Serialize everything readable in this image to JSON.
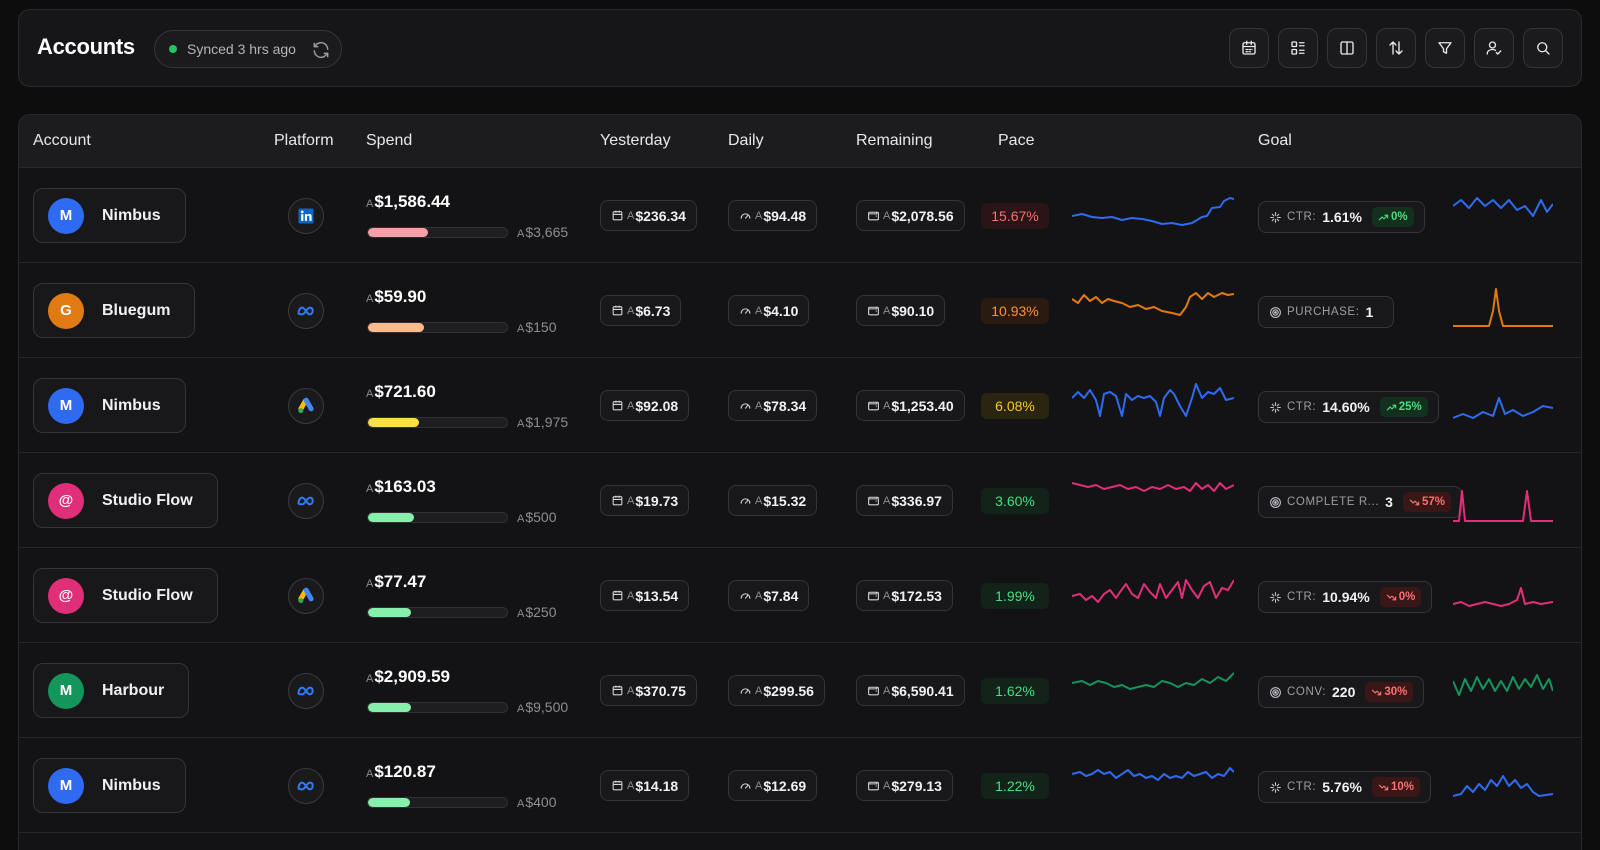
{
  "header": {
    "title": "Accounts",
    "sync_status": "Synced 3 hrs ago",
    "toolbar": [
      "calendar-icon",
      "list-details-icon",
      "columns-icon",
      "sort-icon",
      "filter-icon",
      "user-settings-icon",
      "search-icon"
    ]
  },
  "columns": {
    "account": "Account",
    "platform": "Platform",
    "spend": "Spend",
    "yesterday": "Yesterday",
    "daily": "Daily",
    "remaining": "Remaining",
    "pace": "Pace",
    "goal": "Goal"
  },
  "currency_prefix": "A",
  "rows": [
    {
      "name": "Nimbus",
      "initial": "M",
      "avatar_color": "#2f6bf0",
      "platform": "linkedin-icon",
      "spend": "$1,586.44",
      "spend_fraction": 0.43,
      "budget": "$3,665",
      "bar_color": "#f4a0a6",
      "yesterday": "$236.34",
      "daily": "$94.48",
      "remaining": "$2,078.56",
      "pace": "15.67%",
      "pace_color": "#f87171",
      "pace_bg": "#2b1416",
      "goal_icon": "sparkle-icon",
      "goal_label": "CTR:",
      "goal_value": "1.61%",
      "trend": "0%",
      "trend_dir": "up",
      "spark_color": "#2f6bf0"
    },
    {
      "name": "Bluegum",
      "initial": "G",
      "avatar_color": "#e07b14",
      "platform": "meta-icon",
      "spend": "$59.90",
      "spend_fraction": 0.4,
      "budget": "$150",
      "bar_color": "#fdba8c",
      "yesterday": "$6.73",
      "daily": "$4.10",
      "remaining": "$90.10",
      "pace": "10.93%",
      "pace_color": "#fb923c",
      "pace_bg": "#2b1a10",
      "goal_icon": "target-icon",
      "goal_label": "PURCHASE:",
      "goal_value": "1",
      "trend": "",
      "trend_dir": "",
      "spark_color": "#e07b14"
    },
    {
      "name": "Nimbus",
      "initial": "M",
      "avatar_color": "#2f6bf0",
      "platform": "google-ads-icon",
      "spend": "$721.60",
      "spend_fraction": 0.37,
      "budget": "$1,975",
      "bar_color": "#fde047",
      "yesterday": "$92.08",
      "daily": "$78.34",
      "remaining": "$1,253.40",
      "pace": "6.08%",
      "pace_color": "#facc15",
      "pace_bg": "#2a2510",
      "goal_icon": "sparkle-icon",
      "goal_label": "CTR:",
      "goal_value": "14.60%",
      "trend": "25%",
      "trend_dir": "up",
      "spark_color": "#2f6bf0"
    },
    {
      "name": "Studio Flow",
      "initial": "@",
      "avatar_color": "#e02f78",
      "platform": "meta-icon",
      "spend": "$163.03",
      "spend_fraction": 0.33,
      "budget": "$500",
      "bar_color": "#86efac",
      "yesterday": "$19.73",
      "daily": "$15.32",
      "remaining": "$336.97",
      "pace": "3.60%",
      "pace_color": "#4ade80",
      "pace_bg": "#12231a",
      "goal_icon": "target-icon",
      "goal_label": "COMPLETE R...",
      "goal_value": "3",
      "trend": "57%",
      "trend_dir": "down",
      "spark_color": "#e02f78"
    },
    {
      "name": "Studio Flow",
      "initial": "@",
      "avatar_color": "#e02f78",
      "platform": "google-ads-icon",
      "spend": "$77.47",
      "spend_fraction": 0.31,
      "budget": "$250",
      "bar_color": "#86efac",
      "yesterday": "$13.54",
      "daily": "$7.84",
      "remaining": "$172.53",
      "pace": "1.99%",
      "pace_color": "#4ade80",
      "pace_bg": "#12231a",
      "goal_icon": "sparkle-icon",
      "goal_label": "CTR:",
      "goal_value": "10.94%",
      "trend": "0%",
      "trend_dir": "down",
      "spark_color": "#e02f78"
    },
    {
      "name": "Harbour",
      "initial": "M",
      "avatar_color": "#14955c",
      "platform": "meta-icon",
      "spend": "$2,909.59",
      "spend_fraction": 0.31,
      "budget": "$9,500",
      "bar_color": "#86efac",
      "yesterday": "$370.75",
      "daily": "$299.56",
      "remaining": "$6,590.41",
      "pace": "1.62%",
      "pace_color": "#4ade80",
      "pace_bg": "#12231a",
      "goal_icon": "target-icon",
      "goal_label": "CONV:",
      "goal_value": "220",
      "trend": "30%",
      "trend_dir": "down",
      "spark_color": "#14955c"
    },
    {
      "name": "Nimbus",
      "initial": "M",
      "avatar_color": "#2f6bf0",
      "platform": "meta-icon",
      "spend": "$120.87",
      "spend_fraction": 0.3,
      "budget": "$400",
      "bar_color": "#86efac",
      "yesterday": "$14.18",
      "daily": "$12.69",
      "remaining": "$279.13",
      "pace": "1.22%",
      "pace_color": "#4ade80",
      "pace_bg": "#12231a",
      "goal_icon": "sparkle-icon",
      "goal_label": "CTR:",
      "goal_value": "5.76%",
      "trend": "10%",
      "trend_dir": "down",
      "spark_color": "#2f6bf0"
    }
  ]
}
